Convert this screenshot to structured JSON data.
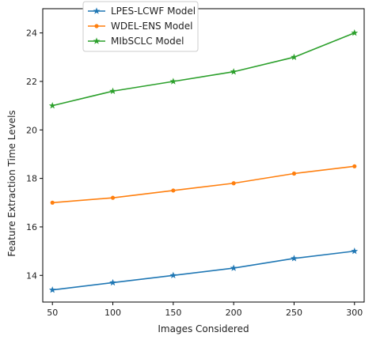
{
  "chart_data": {
    "type": "line",
    "xlabel": "Images Considered",
    "ylabel": "Feature Extraction Time Levels",
    "x": [
      50,
      100,
      150,
      200,
      250,
      300
    ],
    "xticks": [
      "50",
      "100",
      "150",
      "200",
      "250",
      "300"
    ],
    "yticks": [
      "14",
      "16",
      "18",
      "20",
      "22",
      "24"
    ],
    "xlim": [
      42,
      308
    ],
    "ylim": [
      12.9,
      25
    ],
    "grid": false,
    "legend_position": "top-left (above plot)",
    "series": [
      {
        "name": "LPES-LCWF Model",
        "color": "#1f77b4",
        "marker": "star",
        "values": [
          13.4,
          13.7,
          14.0,
          14.3,
          14.7,
          15.0
        ]
      },
      {
        "name": "WDEL-ENS Model",
        "color": "#ff7f0e",
        "marker": "dot",
        "values": [
          17.0,
          17.2,
          17.5,
          17.8,
          18.2,
          18.5
        ]
      },
      {
        "name": "MIbSCLC Model",
        "color": "#2ca02c",
        "marker": "star",
        "values": [
          21.0,
          21.6,
          22.0,
          22.4,
          23.0,
          24.0
        ]
      }
    ]
  }
}
